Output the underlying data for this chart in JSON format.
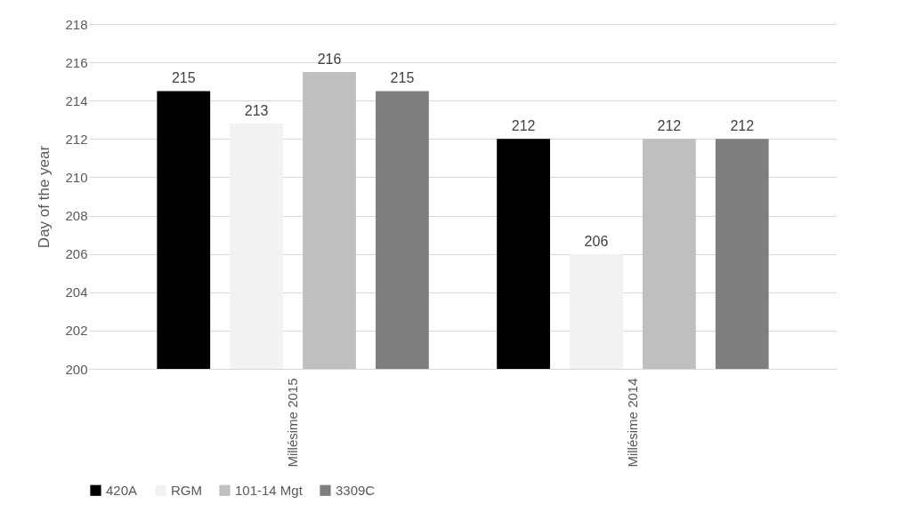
{
  "chart_data": {
    "type": "bar",
    "ylabel": "Day of the year",
    "categories": [
      "Millésime 2015",
      "Millésime 2014"
    ],
    "series": [
      {
        "name": "420A",
        "color": "#000000",
        "values": [
          214.5,
          212
        ],
        "value_labels": [
          "215",
          "212"
        ]
      },
      {
        "name": "RGM",
        "color": "#f2f2f2",
        "values": [
          212.8,
          206
        ],
        "value_labels": [
          "213",
          "206"
        ]
      },
      {
        "name": "101-14 Mgt",
        "color": "#bfbfbf",
        "values": [
          215.5,
          212
        ],
        "value_labels": [
          "216",
          "212"
        ]
      },
      {
        "name": "3309C",
        "color": "#7f7f7f",
        "values": [
          214.5,
          212
        ],
        "value_labels": [
          "215",
          "212"
        ]
      }
    ],
    "ylim": [
      200,
      218
    ],
    "yticks": [
      200,
      202,
      204,
      206,
      208,
      210,
      212,
      214,
      216,
      218
    ],
    "grid": "y",
    "legend": "bottom"
  }
}
